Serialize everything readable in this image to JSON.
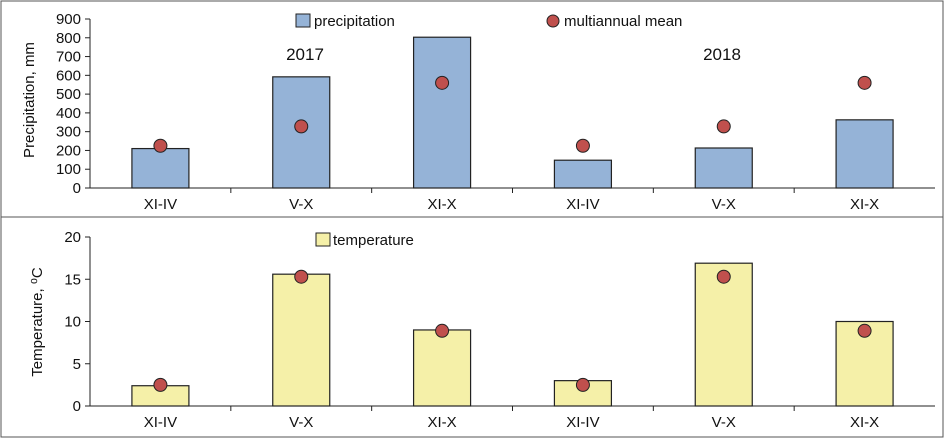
{
  "chart_data": [
    {
      "type": "bar",
      "categories": [
        "XI-IV",
        "V-X",
        "XI-X",
        "XI-IV",
        "V-X",
        "XI-X"
      ],
      "series": [
        {
          "name": "precipitation",
          "kind": "bar",
          "values": [
            210,
            592,
            803,
            148,
            213,
            363
          ]
        },
        {
          "name": "multiannual mean",
          "kind": "marker",
          "values": [
            225,
            328,
            560,
            225,
            328,
            560
          ]
        }
      ],
      "ylabel": "Precipitation, mm",
      "ylim": [
        0,
        900
      ],
      "yticks": [
        0,
        100,
        200,
        300,
        400,
        500,
        600,
        700,
        800,
        900
      ],
      "annotations": [
        "2017",
        "2018"
      ],
      "grid": false,
      "colors": {
        "bar": "#95b3d7",
        "marker": "#c0504d"
      }
    },
    {
      "type": "bar",
      "categories": [
        "XI-IV",
        "V-X",
        "XI-X",
        "XI-IV",
        "V-X",
        "XI-X"
      ],
      "series": [
        {
          "name": "temperature",
          "kind": "bar",
          "values": [
            2.4,
            15.6,
            9.0,
            3.0,
            16.9,
            10.0
          ]
        },
        {
          "name": "",
          "kind": "marker",
          "values": [
            2.5,
            15.3,
            8.9,
            2.5,
            15.3,
            8.9
          ]
        }
      ],
      "ylabel": "Temperature, ⁰C",
      "ylim": [
        0,
        20
      ],
      "yticks": [
        0,
        5,
        10,
        15,
        20
      ],
      "grid": false,
      "colors": {
        "bar": "#f5f0a8",
        "marker": "#c0504d"
      }
    }
  ]
}
